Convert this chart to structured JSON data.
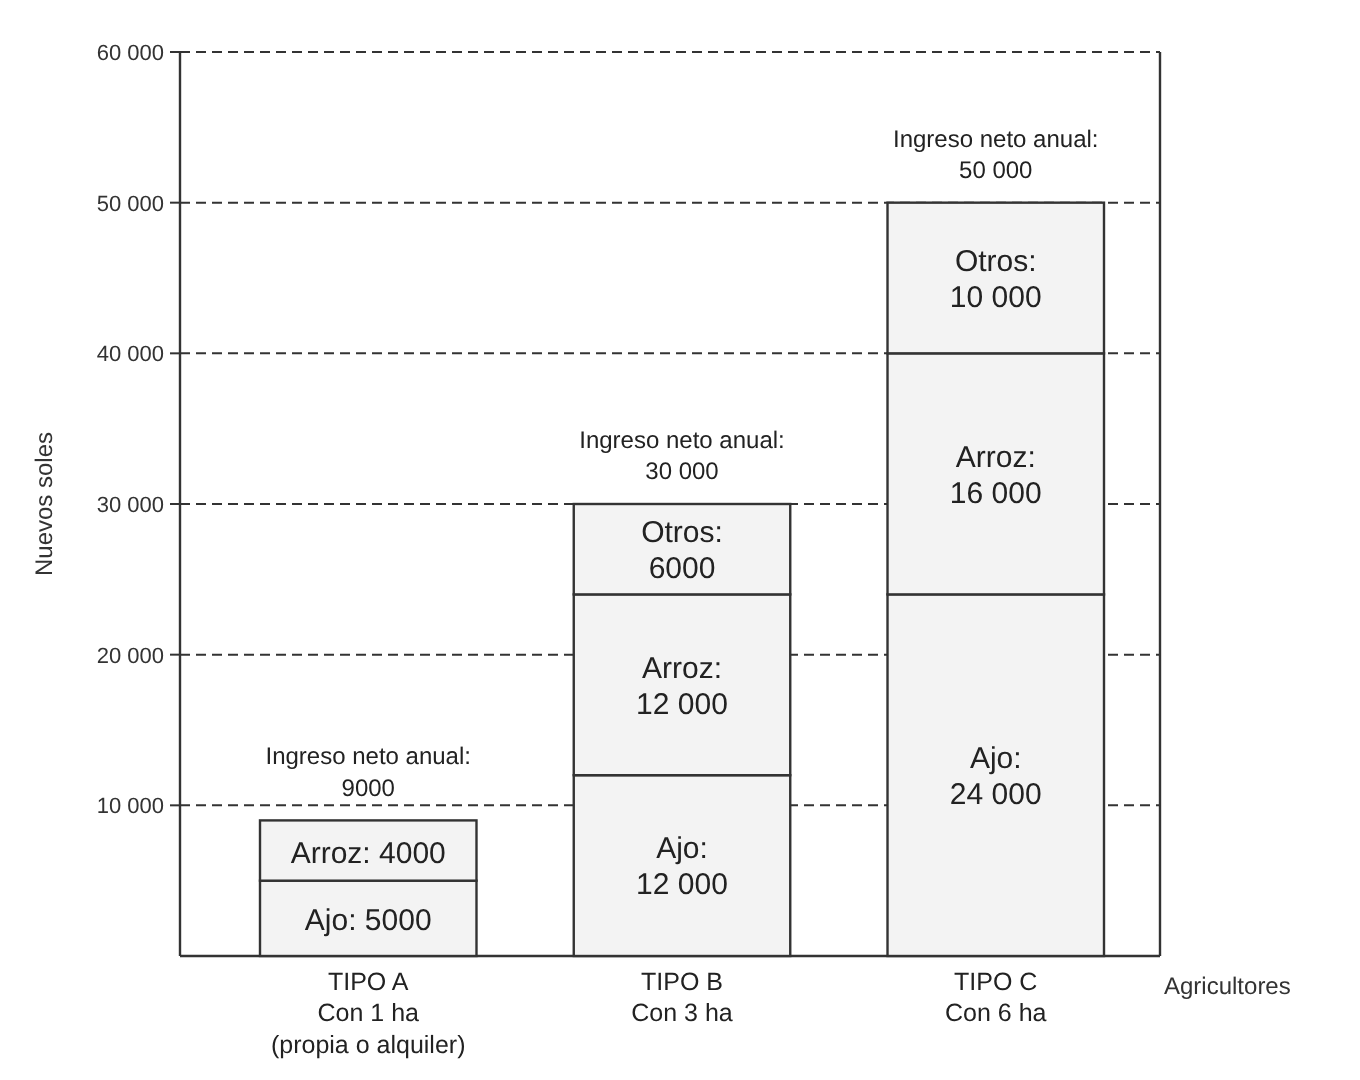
{
  "chart_data": {
    "type": "bar",
    "stacked": true,
    "ylabel": "Nuevos soles",
    "xlabel": "Agricultores",
    "categories": [
      "TIPO A\nCon 1 ha\n(propia o alquiler)",
      "TIPO B\nCon 3 ha",
      "TIPO C\nCon 6 ha"
    ],
    "series": [
      {
        "name": "Ajo:",
        "color": "#f3f3f3",
        "values": [
          5000,
          12000,
          24000
        ],
        "value_labels": [
          "5000",
          "12 000",
          "24 000"
        ]
      },
      {
        "name": "Arroz:",
        "color": "#f3f3f3",
        "values": [
          4000,
          12000,
          16000
        ],
        "value_labels": [
          "4000",
          "12 000",
          "16 000"
        ]
      },
      {
        "name": "Otros:",
        "color": "#f3f3f3",
        "values": [
          null,
          6000,
          10000
        ],
        "value_labels": [
          null,
          "6000",
          "10 000"
        ]
      }
    ],
    "totals": [
      "Ingreso neto anual:\n9000",
      "Ingreso neto anual:\n30 000",
      "Ingreso neto anual:\n50 000"
    ],
    "ylim": [
      0,
      60000
    ],
    "yticks": [
      {
        "value": 10000,
        "label": "10 000"
      },
      {
        "value": 20000,
        "label": "20 000"
      },
      {
        "value": 30000,
        "label": "30 000"
      },
      {
        "value": 40000,
        "label": "40 000"
      },
      {
        "value": 50000,
        "label": "50 000"
      },
      {
        "value": 60000,
        "label": "60 000"
      }
    ],
    "grid": "y"
  }
}
